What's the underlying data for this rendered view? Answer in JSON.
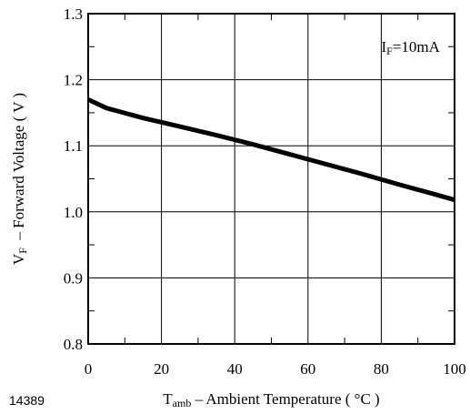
{
  "figure_number": "14389",
  "chart_data": {
    "type": "line",
    "annotation": {
      "symbol": "I",
      "subscript": "F",
      "rest": "=10mA"
    },
    "xlabel": {
      "symbol": "T",
      "subscript": "amb",
      "rest": " – Ambient Temperature ( °C )"
    },
    "ylabel": {
      "symbol": "V",
      "subscript": "F",
      "rest": "  – Forward Voltage ( V )"
    },
    "xlim": [
      0,
      100
    ],
    "ylim": [
      0.8,
      1.3
    ],
    "x_ticks": [
      {
        "value": 0,
        "label": "0"
      },
      {
        "value": 20,
        "label": "20"
      },
      {
        "value": 40,
        "label": "40"
      },
      {
        "value": 60,
        "label": "60"
      },
      {
        "value": 80,
        "label": "80"
      },
      {
        "value": 100,
        "label": "100"
      }
    ],
    "y_ticks": [
      {
        "value": 0.8,
        "label": "0.8"
      },
      {
        "value": 0.9,
        "label": "0.9"
      },
      {
        "value": 1.0,
        "label": "1.0"
      },
      {
        "value": 1.1,
        "label": "1.1"
      },
      {
        "value": 1.2,
        "label": "1.2"
      },
      {
        "value": 1.3,
        "label": "1.3"
      }
    ],
    "x_minor_step": 10,
    "y_minor_step": 0.05,
    "grid": true,
    "colors": {
      "line": "#000000",
      "grid": "#000000",
      "frame": "#000000"
    },
    "series": [
      {
        "x": [
          0,
          5,
          15,
          25,
          35,
          45,
          55,
          65,
          75,
          85,
          95,
          100
        ],
        "y": [
          1.17,
          1.157,
          1.142,
          1.129,
          1.116,
          1.102,
          1.087,
          1.072,
          1.057,
          1.041,
          1.026,
          1.018
        ]
      }
    ]
  }
}
